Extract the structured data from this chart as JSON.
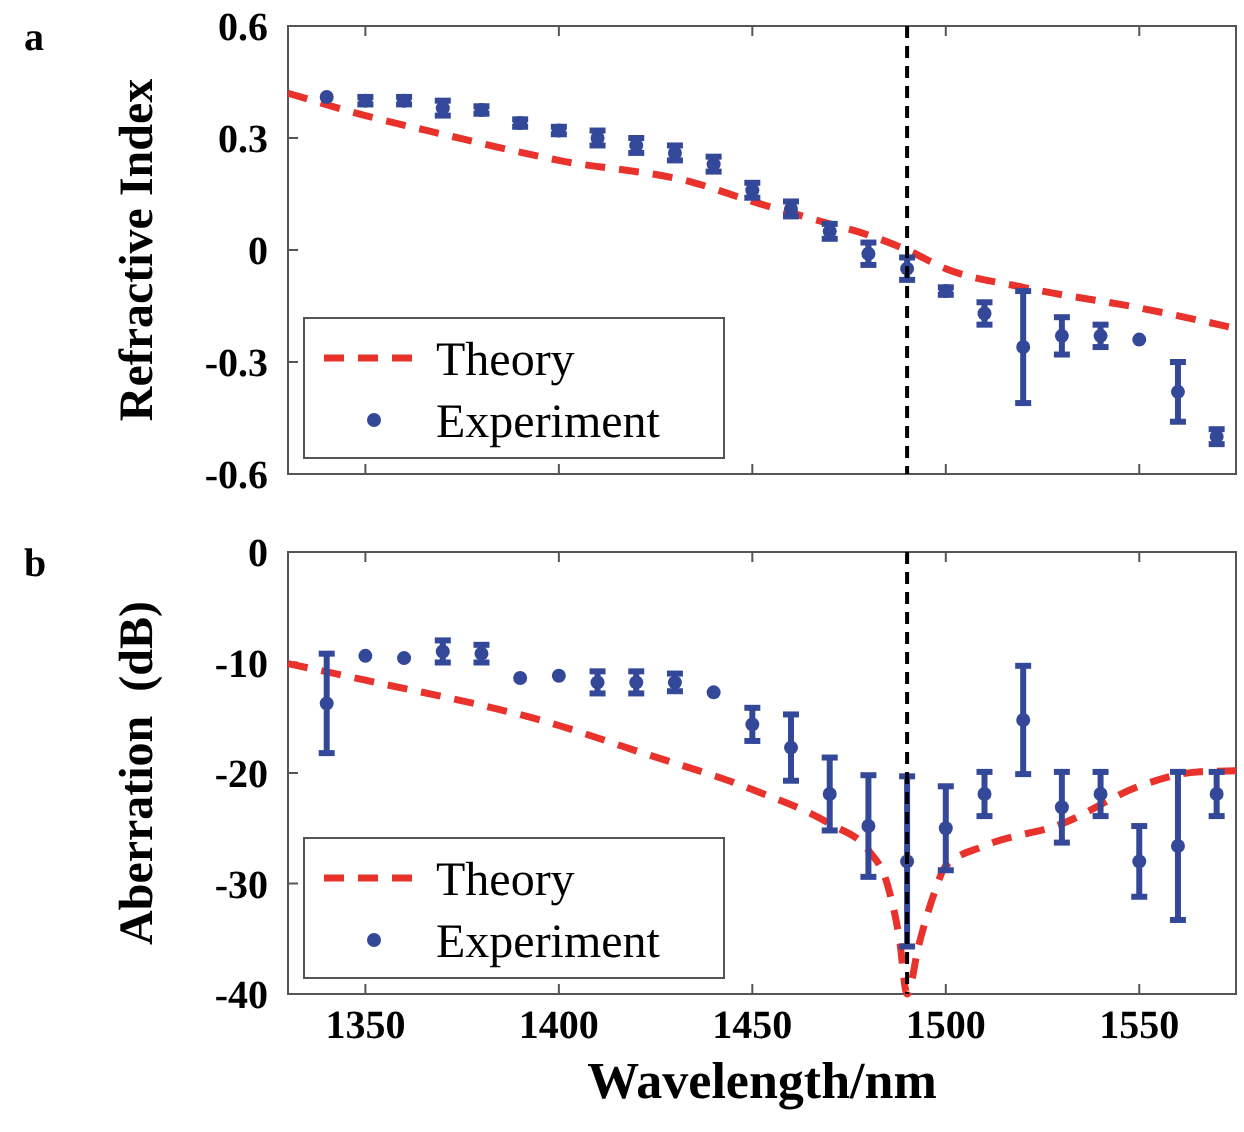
{
  "chart_data": [
    {
      "type": "scatter",
      "title": "a",
      "ylabel": "Refractive Index",
      "xlim": [
        1330,
        1575
      ],
      "xticks": [
        1350,
        1400,
        1450,
        1500,
        1550
      ],
      "ylim": [
        -0.6,
        0.6
      ],
      "yticks": [
        -0.6,
        -0.3,
        0,
        0.3,
        0.6
      ],
      "tick_labels": "y",
      "legend": "bottom left",
      "grid": false,
      "marker": "circle",
      "ref_lines": [
        {
          "axis": "x",
          "value": 1490,
          "label": null,
          "color": "#000000",
          "line_style": "dashed"
        }
      ],
      "series": [
        {
          "name": "Theory",
          "type": "line",
          "line_style": "dashed",
          "marker": "none",
          "color": "#e8322b",
          "x": [
            1330,
            1350,
            1370,
            1400,
            1435,
            1450,
            1470,
            1480,
            1490,
            1500,
            1520,
            1550,
            1575
          ],
          "values": [
            0.42,
            0.36,
            0.31,
            0.24,
            0.18,
            0.13,
            0.07,
            0.04,
            0,
            -0.05,
            -0.1,
            -0.155,
            -0.21
          ]
        },
        {
          "name": "Experiment",
          "color": "#34489a",
          "x": [
            1340,
            1350,
            1360,
            1370,
            1380,
            1390,
            1400,
            1410,
            1420,
            1430,
            1440,
            1450,
            1460,
            1470,
            1480,
            1490,
            1500,
            1510,
            1520,
            1530,
            1540,
            1550,
            1560,
            1570
          ],
          "values": [
            0.41,
            0.4,
            0.4,
            0.38,
            0.375,
            0.34,
            0.32,
            0.3,
            0.28,
            0.26,
            0.23,
            0.16,
            0.11,
            0.05,
            -0.01,
            -0.05,
            -0.11,
            -0.17,
            -0.26,
            -0.23,
            -0.23,
            -0.24,
            -0.38,
            -0.5
          ],
          "errors": [
            null,
            0.01,
            0.01,
            0.02,
            0.01,
            0.01,
            0.01,
            0.02,
            0.02,
            0.02,
            0.02,
            0.02,
            0.02,
            0.02,
            0.03,
            0.03,
            0.01,
            0.03,
            0.15,
            0.05,
            0.03,
            null,
            0.08,
            0.02
          ]
        }
      ]
    },
    {
      "type": "scatter",
      "title": "b",
      "xlabel": "Wavelength/nm",
      "ylabel": "Aberration  (dB)",
      "xlim": [
        1330,
        1575
      ],
      "xticks": [
        1350,
        1400,
        1450,
        1500,
        1550
      ],
      "ylim": [
        -40,
        0
      ],
      "yticks": [
        -40,
        -30,
        -20,
        -10,
        0
      ],
      "legend": "bottom left",
      "grid": false,
      "marker": "circle",
      "ref_lines": [
        {
          "axis": "x",
          "value": 1490,
          "label": null,
          "color": "#000000",
          "line_style": "dashed"
        }
      ],
      "series": [
        {
          "name": "Theory",
          "type": "line",
          "line_style": "dashed",
          "marker": "none",
          "color": "#e8322b",
          "x": [
            1330,
            1350,
            1400,
            1420,
            1450,
            1470,
            1480,
            1485,
            1488,
            1490,
            1493,
            1497,
            1500,
            1510,
            1530,
            1550,
            1565,
            1575
          ],
          "values": [
            -10.1,
            -11.6,
            -15.7,
            -18,
            -21.5,
            -24.6,
            -27,
            -30.2,
            -35,
            -40,
            -35.6,
            -30.9,
            -28.4,
            -26.6,
            -24.6,
            -21.2,
            -19.9,
            -19.8
          ]
        },
        {
          "name": "Experiment",
          "color": "#34489a",
          "x": [
            1340,
            1350,
            1360,
            1370,
            1380,
            1390,
            1400,
            1410,
            1420,
            1430,
            1440,
            1450,
            1460,
            1470,
            1480,
            1490,
            1500,
            1510,
            1520,
            1530,
            1540,
            1550,
            1560,
            1570
          ],
          "values": [
            -13.7,
            -9.4,
            -9.6,
            -9,
            -9.2,
            -11.4,
            -11.2,
            -11.8,
            -11.8,
            -11.8,
            -12.7,
            -15.6,
            -17.7,
            -21.9,
            -24.8,
            -28,
            -25,
            -21.9,
            -15.2,
            -23.1,
            -21.9,
            -28,
            -26.6,
            -21.9
          ],
          "errors": [
            4.5,
            null,
            null,
            1,
            0.8,
            null,
            null,
            1,
            1,
            0.8,
            null,
            1.5,
            3,
            3.3,
            4.6,
            7.7,
            3.8,
            2,
            4.9,
            3.2,
            2,
            3.2,
            6.7,
            2
          ]
        }
      ]
    }
  ]
}
